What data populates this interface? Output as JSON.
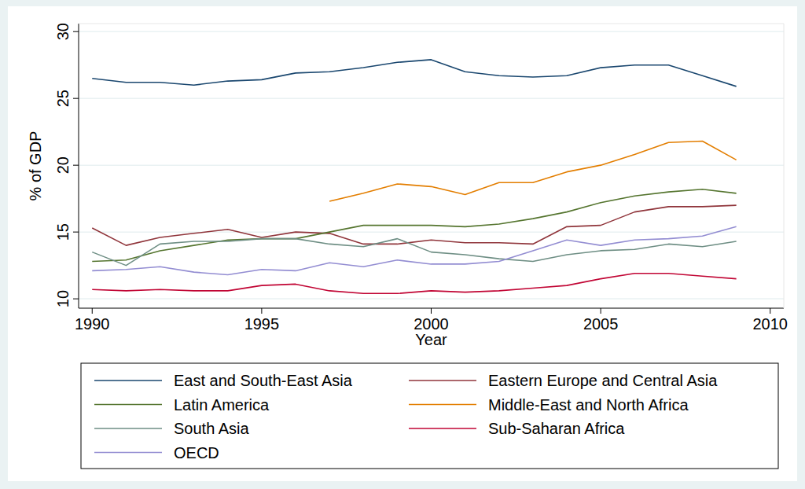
{
  "chart_data": {
    "type": "line",
    "x_label": "Year",
    "y_label": "% of GDP",
    "x": [
      1990,
      1991,
      1992,
      1993,
      1994,
      1995,
      1996,
      1997,
      1998,
      1999,
      2000,
      2001,
      2002,
      2003,
      2004,
      2005,
      2006,
      2007,
      2008,
      2009
    ],
    "xlim": [
      1989.6,
      2010.4
    ],
    "xticks": [
      1990,
      1995,
      2000,
      2005,
      2010
    ],
    "ylim": [
      9.3,
      30.6
    ],
    "yticks": [
      10,
      15,
      20,
      25,
      30
    ],
    "grid": true,
    "legend": "bottom",
    "series": [
      {
        "name": "East and South-East Asia",
        "color": "#1a476f",
        "values": [
          26.5,
          26.2,
          26.2,
          26.0,
          26.3,
          26.4,
          26.9,
          27.0,
          27.3,
          27.7,
          27.9,
          27.0,
          26.7,
          26.6,
          26.7,
          27.3,
          27.5,
          27.5,
          26.7,
          25.9
        ]
      },
      {
        "name": "Eastern Europe and Central Asia",
        "color": "#90353b",
        "values": [
          15.3,
          14.0,
          14.6,
          14.9,
          15.2,
          14.6,
          15.0,
          14.9,
          14.1,
          14.1,
          14.4,
          14.2,
          14.2,
          14.1,
          15.4,
          15.5,
          16.5,
          16.9,
          16.9,
          17.0
        ]
      },
      {
        "name": "Latin America",
        "color": "#55752f",
        "values": [
          12.8,
          12.9,
          13.6,
          14.0,
          14.4,
          14.5,
          14.5,
          15.0,
          15.5,
          15.5,
          15.5,
          15.4,
          15.6,
          16.0,
          16.5,
          17.2,
          17.7,
          18.0,
          18.2,
          17.9
        ]
      },
      {
        "name": "Middle-East and North Africa",
        "color": "#e37e00",
        "values": [
          null,
          null,
          null,
          null,
          null,
          null,
          null,
          17.3,
          17.9,
          18.6,
          18.4,
          17.8,
          18.7,
          18.7,
          19.5,
          20.0,
          20.8,
          21.7,
          21.8,
          20.4
        ]
      },
      {
        "name": "South Asia",
        "color": "#6e8e84",
        "values": [
          13.5,
          12.5,
          14.1,
          14.3,
          14.3,
          14.5,
          14.5,
          14.1,
          13.9,
          14.5,
          13.5,
          13.3,
          13.0,
          12.8,
          13.3,
          13.6,
          13.7,
          14.1,
          13.9,
          14.3
        ]
      },
      {
        "name": "Sub-Saharan Africa",
        "color": "#c10534",
        "values": [
          10.7,
          10.6,
          10.7,
          10.6,
          10.6,
          11.0,
          11.1,
          10.6,
          10.4,
          10.4,
          10.6,
          10.5,
          10.6,
          10.8,
          11.0,
          11.5,
          11.9,
          11.9,
          11.7,
          11.5
        ]
      },
      {
        "name": "OECD",
        "color": "#938dd2",
        "values": [
          12.1,
          12.2,
          12.4,
          12.0,
          11.8,
          12.2,
          12.1,
          12.7,
          12.4,
          12.9,
          12.6,
          12.6,
          12.8,
          13.6,
          14.4,
          14.0,
          14.4,
          14.5,
          14.7,
          15.4
        ]
      }
    ]
  }
}
